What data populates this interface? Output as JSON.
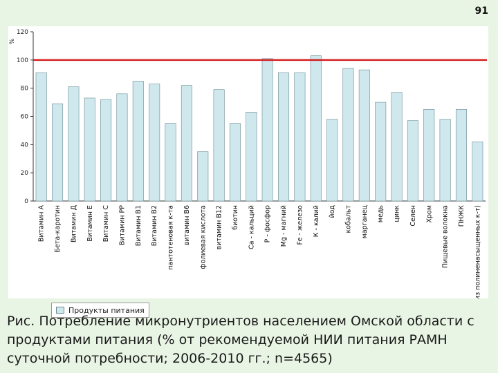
{
  "page_number": "91",
  "caption": "Рис. Потребление микронутриентов населением Омской области с продуктами питания (% от рекомендуемой НИИ питания РАМН суточной потребности; 2006-2010 гг.; n=4565)",
  "colors": {
    "bar": "#cfe8ee",
    "bar_border": "#6a8a92",
    "reference_line": "#d42020",
    "background": "#e9f5e4"
  },
  "chart_data": {
    "type": "bar",
    "ylabel": "%",
    "ylim": [
      0,
      120
    ],
    "yticks": [
      0,
      20,
      40,
      60,
      80,
      100,
      120
    ],
    "grid": false,
    "legend": {
      "placement": "bottom-left",
      "entries": [
        "Продукты питания"
      ]
    },
    "reference_line": 100,
    "categories": [
      "Витамин А",
      "Бета-каротин",
      "Витамин Д",
      "Витамин Е",
      "Витамин С",
      "Витамин РР",
      "Витамин В1",
      "Витамин В2",
      "пантотеновая к-та",
      "витамин В6",
      "фолиевая кислота",
      "витамин В12",
      "биотин",
      "Са - кальций",
      "Р - фосфор",
      "Mg - магний",
      "Fe - железо",
      "К - калий",
      "йод",
      "кобальт",
      "марганец",
      "медь",
      "цинк",
      "Селен",
      "Хром",
      "Пищевые волокна",
      "ПНЖК",
      "W 3 (из полиненасыщенных к-т)"
    ],
    "series": [
      {
        "name": "Продукты питания",
        "values": [
          91,
          69,
          81,
          73,
          72,
          76,
          85,
          83,
          55,
          82,
          35,
          79,
          55,
          63,
          101,
          91,
          91,
          103,
          58,
          94,
          93,
          70,
          77,
          57,
          65,
          58,
          65,
          42
        ]
      }
    ]
  }
}
